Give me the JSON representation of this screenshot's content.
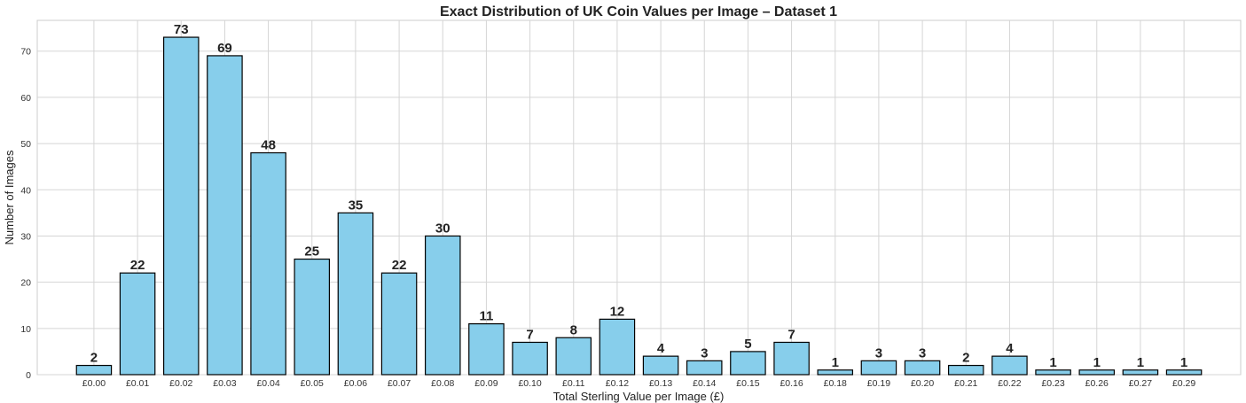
{
  "chart_data": {
    "type": "bar",
    "title": "Exact Distribution of UK Coin Values per Image – Dataset 1",
    "xlabel": "Total Sterling Value per Image (£)",
    "ylabel": "Number of Images",
    "categories": [
      "£0.00",
      "£0.01",
      "£0.02",
      "£0.03",
      "£0.04",
      "£0.05",
      "£0.06",
      "£0.07",
      "£0.08",
      "£0.09",
      "£0.10",
      "£0.11",
      "£0.12",
      "£0.13",
      "£0.14",
      "£0.15",
      "£0.16",
      "£0.18",
      "£0.19",
      "£0.20",
      "£0.21",
      "£0.22",
      "£0.23",
      "£0.26",
      "£0.27",
      "£0.29"
    ],
    "values": [
      2,
      22,
      73,
      69,
      48,
      25,
      35,
      22,
      30,
      11,
      7,
      8,
      12,
      4,
      3,
      5,
      7,
      1,
      3,
      3,
      2,
      4,
      1,
      1,
      1,
      1
    ],
    "ylim": [
      0,
      76.65
    ],
    "yticks": [
      0,
      10,
      20,
      30,
      40,
      50,
      60,
      70
    ],
    "grid": true,
    "bar_color": "#87CEEB",
    "edge_color": "#000000"
  }
}
